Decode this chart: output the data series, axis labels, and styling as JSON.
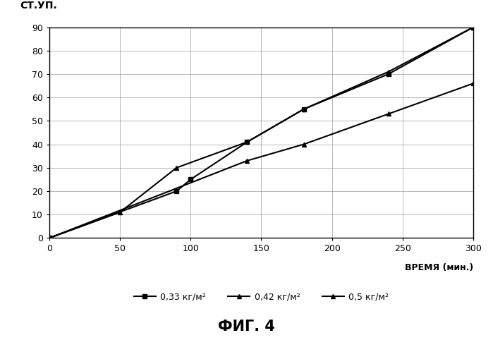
{
  "series": [
    {
      "label": "0,33 кг/м²",
      "x": [
        0,
        90,
        100,
        140,
        180,
        240,
        300
      ],
      "y": [
        0,
        20,
        25,
        41,
        55,
        70,
        90
      ],
      "marker": "s"
    },
    {
      "label": "0,42 кг/м²",
      "x": [
        0,
        50,
        90,
        140,
        180,
        240,
        300
      ],
      "y": [
        0,
        11,
        30,
        41,
        55,
        71,
        90
      ],
      "marker": "^"
    },
    {
      "label": "0,5 кг/м²",
      "x": [
        0,
        140,
        180,
        240,
        300
      ],
      "y": [
        0,
        33,
        40,
        53,
        66
      ],
      "marker": "^"
    }
  ],
  "ylabel": "СТ.УП.",
  "xlabel": "ВРЕМЯ (мин.)",
  "xlim": [
    0,
    300
  ],
  "ylim": [
    0,
    90
  ],
  "xticks": [
    0,
    50,
    100,
    150,
    200,
    250,
    300
  ],
  "yticks": [
    0,
    10,
    20,
    30,
    40,
    50,
    60,
    70,
    80,
    90
  ],
  "title_fig": "ФИГ. 4",
  "line_color": "#000000",
  "linewidth": 1.5,
  "markersize": 5,
  "background_color": "#ffffff",
  "grid_color": "#999999"
}
